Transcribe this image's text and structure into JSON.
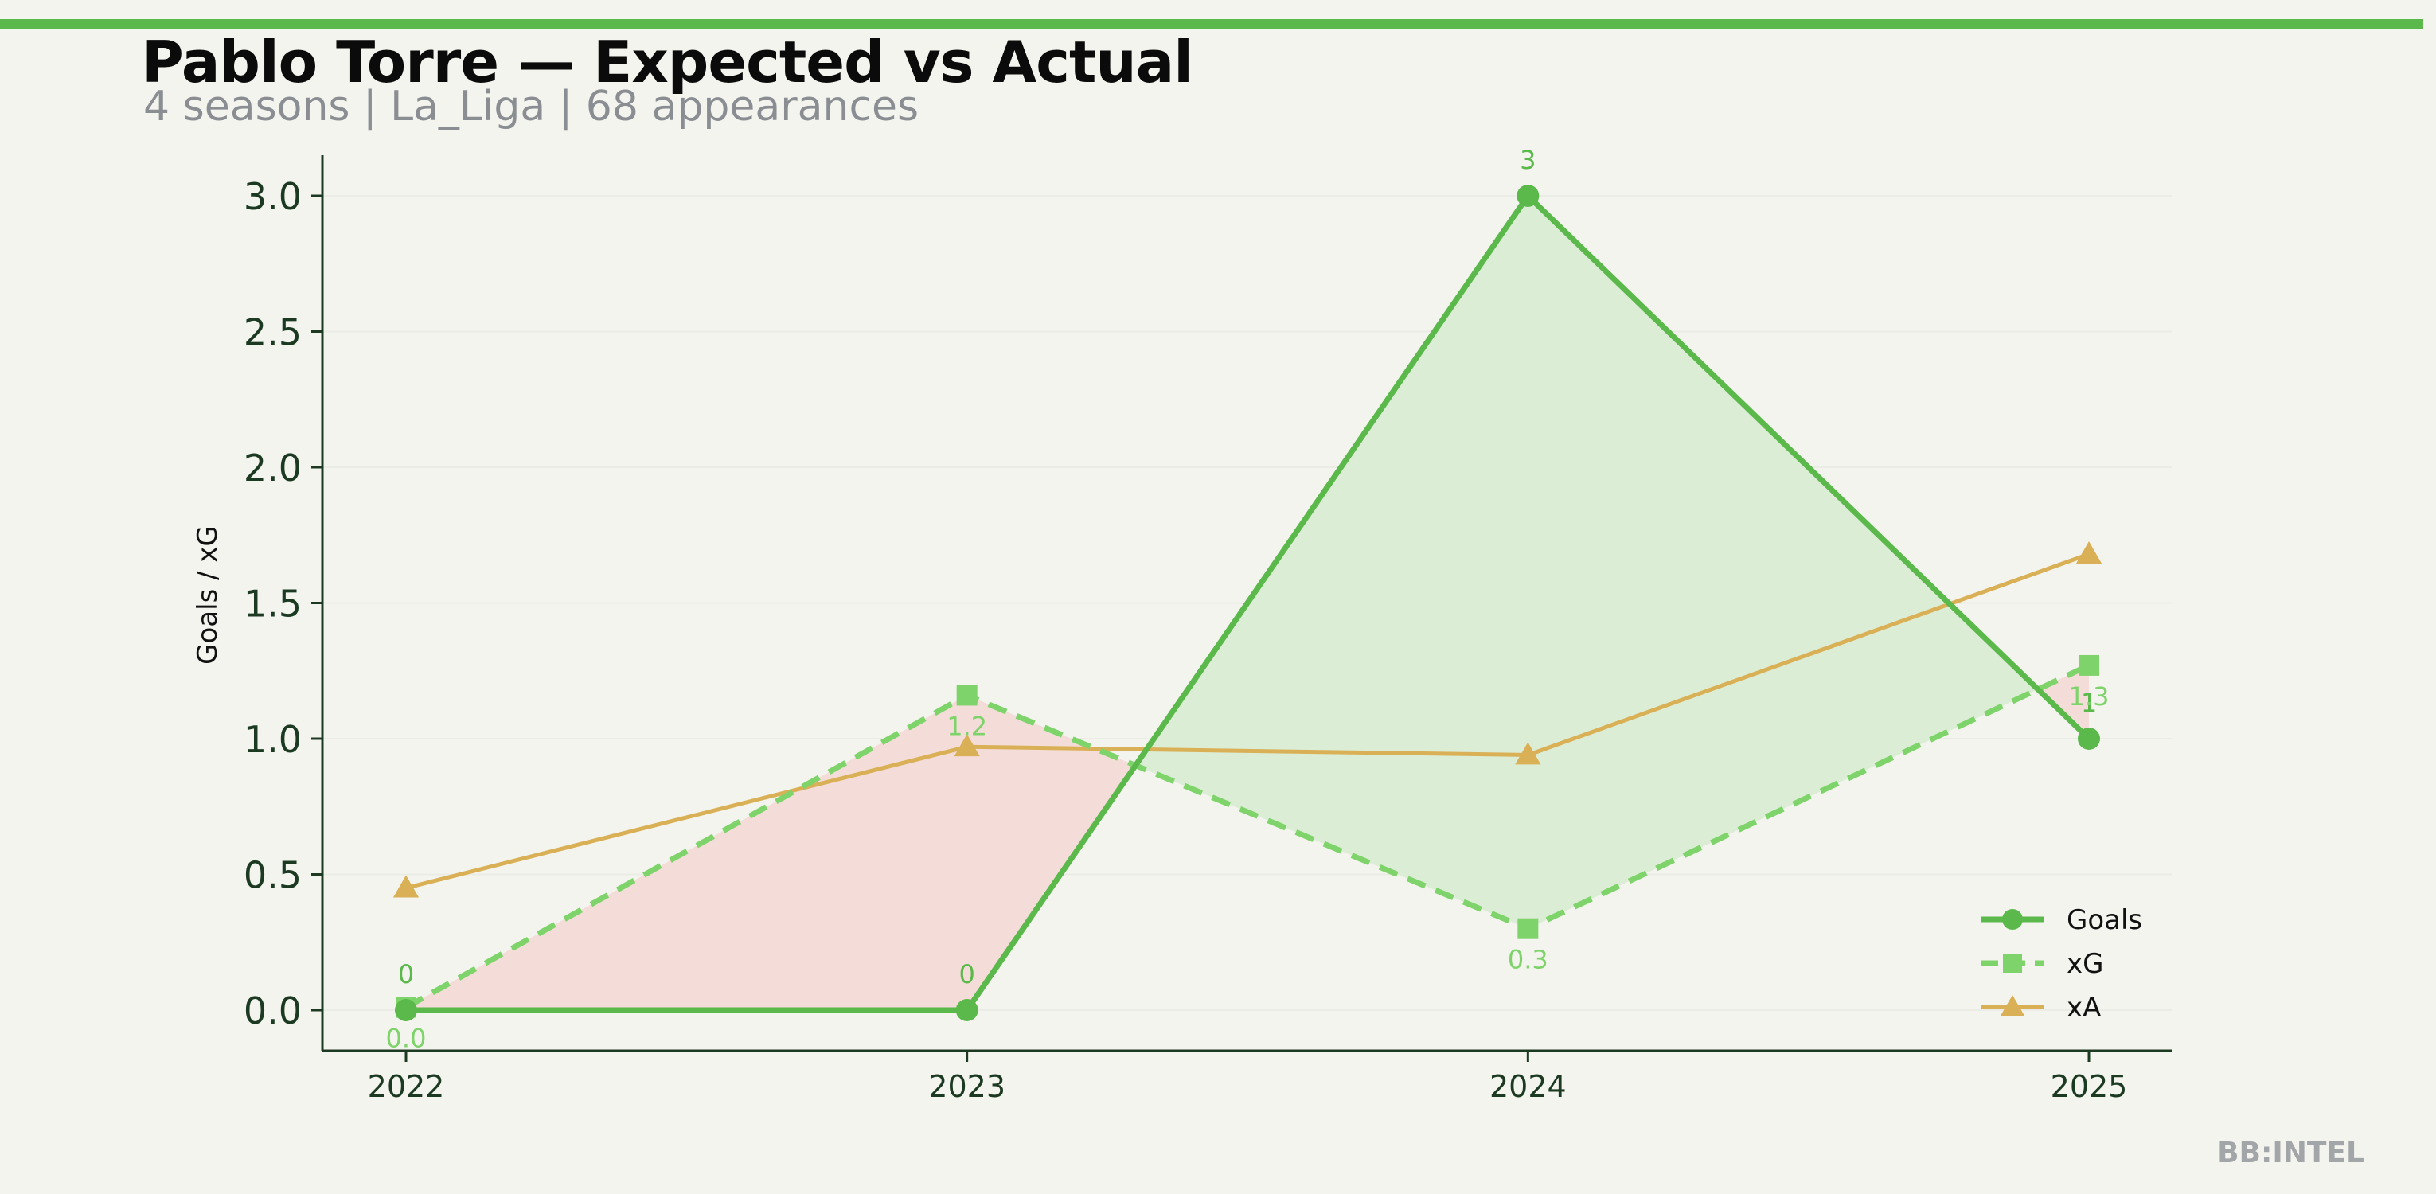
{
  "header": {
    "title": "Pablo Torre — Expected vs Actual",
    "subtitle": "4 seasons | La_Liga | 68 appearances"
  },
  "footer": {
    "watermark": "BB:INTEL"
  },
  "colors": {
    "background": "#f4f4ef",
    "accent": "#5ab94a",
    "goals": "#5ab94a",
    "xg": "#7ed46a",
    "xa": "#d9b055",
    "overperform_fill": "#dcedd6",
    "underperform_fill": "#f4dcd8",
    "axis": "#1c3a22"
  },
  "chart_data": {
    "type": "line",
    "title": "Pablo Torre — Expected vs Actual",
    "subtitle": "4 seasons | La_Liga | 68 appearances",
    "xlabel": "",
    "ylabel": "Goals / xG",
    "categories": [
      "2022",
      "2023",
      "2024",
      "2025"
    ],
    "ylim": [
      -0.14,
      3.16
    ],
    "yticks": [
      "0.0",
      "0.5",
      "1.0",
      "1.5",
      "2.0",
      "2.5",
      "3.0"
    ],
    "grid": true,
    "legend_position": "bottom-right",
    "series": [
      {
        "name": "Goals",
        "key": "goals",
        "values": [
          0,
          0,
          3,
          1
        ],
        "labels": [
          "0",
          "0",
          "3",
          "1"
        ],
        "marker": "circle",
        "style": "solid"
      },
      {
        "name": "xG",
        "key": "xg",
        "values": [
          0.01,
          1.16,
          0.3,
          1.27
        ],
        "labels": [
          "0.0",
          "1.2",
          "0.3",
          "1.3"
        ],
        "marker": "square",
        "style": "dashed"
      },
      {
        "name": "xA",
        "key": "xa",
        "values": [
          0.45,
          0.97,
          0.94,
          1.68
        ],
        "marker": "triangle",
        "style": "solid"
      }
    ]
  }
}
